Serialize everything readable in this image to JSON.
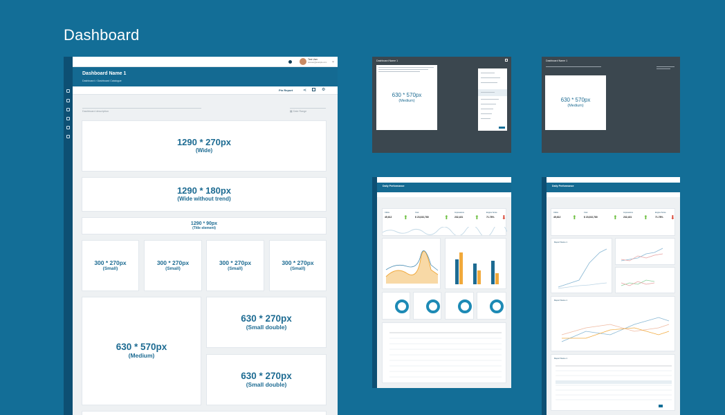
{
  "page": {
    "title": "Dashboard"
  },
  "main_mock": {
    "topbar": {
      "user_name": "Test User",
      "user_email": "testuser@example.com"
    },
    "header": {
      "title": "Dashboard Name 1",
      "breadcrumb": "Dashboard  >  Dashboard Catalogue"
    },
    "toolbar": {
      "pin_report": "Pin Report"
    },
    "filters": {
      "description_placeholder": "Dashboard description",
      "date_placeholder": "Date Range"
    },
    "cards": [
      {
        "size": "1290 * 270px",
        "label": "(Wide)"
      },
      {
        "size": "1290 * 180px",
        "label": "(Wide without trend)"
      },
      {
        "size": "1290 * 90px",
        "label": "(Title element)"
      },
      {
        "size": "300 * 270px",
        "label": "(Small)"
      },
      {
        "size": "300 * 270px",
        "label": "(Small)"
      },
      {
        "size": "300 * 270px",
        "label": "(Small)"
      },
      {
        "size": "300 * 270px",
        "label": "(Small)"
      },
      {
        "size": "630 * 570px",
        "label": "(Medium)"
      },
      {
        "size": "630 * 270px",
        "label": "(Small double)"
      },
      {
        "size": "630 * 270px",
        "label": "(Small double)"
      }
    ]
  },
  "thumb_edit_1": {
    "title": "Dashboard Name 1",
    "card": {
      "size": "630 * 570px",
      "label": "(Medium)"
    }
  },
  "thumb_edit_2": {
    "title": "Dashboard Name 1",
    "card": {
      "size": "630 * 570px",
      "label": "(Medium)"
    }
  },
  "thumb_perf_1": {
    "title": "Daily Performance",
    "kpis": [
      {
        "name": "Clicks",
        "value": "45,612",
        "trend": "up"
      },
      {
        "name": "Cost",
        "value": "$ 23,032,780",
        "trend": "up"
      },
      {
        "name": "Impressions",
        "value": "232,431",
        "trend": "up"
      },
      {
        "name": "Engine Score",
        "value": "71.78%",
        "trend": "down"
      }
    ]
  },
  "thumb_perf_2": {
    "title": "Daily Performance",
    "kpis": [
      {
        "name": "Clicks",
        "value": "45,612",
        "trend": "up"
      },
      {
        "name": "Cost",
        "value": "$ 23,032,780",
        "trend": "up"
      },
      {
        "name": "Impressions",
        "value": "232,431",
        "trend": "up"
      },
      {
        "name": "Engine Score",
        "value": "71.78%",
        "trend": "down"
      }
    ],
    "reports": [
      "Report Name 1",
      "Report Name 1",
      "Report Name 1"
    ]
  },
  "colors": {
    "background": "#136e97",
    "brand": "#146a92",
    "up": "#6cbf3f",
    "down": "#d8412f",
    "accent_orange": "#f1a93b"
  }
}
